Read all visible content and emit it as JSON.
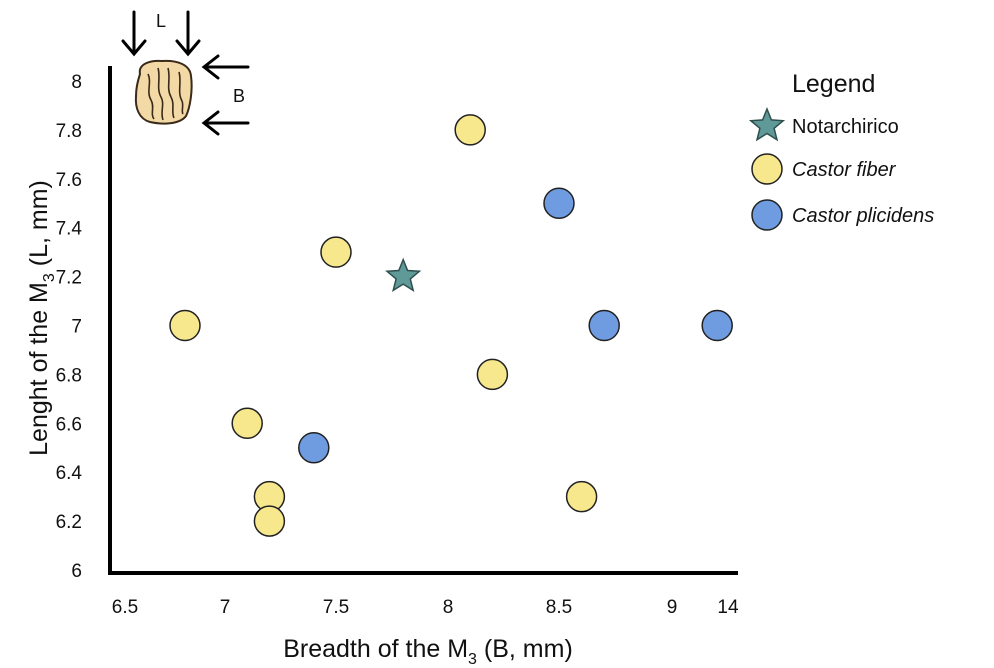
{
  "chart_data": {
    "type": "scatter",
    "xlabel": "Breadth of the M",
    "xlabel_sub": "3",
    "xlabel_tail": " (B, mm)",
    "ylabel": "Lenght of the  M",
    "ylabel_sub": "3",
    "ylabel_tail": " (L, mm)",
    "x_ticks": [
      "6.5",
      "7",
      "7.5",
      "8",
      "8.5",
      "9",
      "14"
    ],
    "y_ticks": [
      "6",
      "6.2",
      "6.4",
      "6.6",
      "6.8",
      "7",
      "7.2",
      "7.4",
      "7.6",
      "7.8",
      "8"
    ],
    "ylim": [
      6,
      8
    ],
    "grid": false,
    "legend_position": "top-right",
    "legend_title": "Legend",
    "series": [
      {
        "name": "Notarchirico",
        "marker": "star",
        "color": "#5f9a98",
        "points": [
          {
            "x": 7.8,
            "y": 7.2
          }
        ]
      },
      {
        "name": "Castor fiber",
        "marker": "circle",
        "color": "#f7e88e",
        "points": [
          {
            "x": 6.8,
            "y": 7.0
          },
          {
            "x": 7.1,
            "y": 6.6
          },
          {
            "x": 7.2,
            "y": 6.3
          },
          {
            "x": 7.2,
            "y": 6.2
          },
          {
            "x": 7.5,
            "y": 7.3
          },
          {
            "x": 8.1,
            "y": 7.8
          },
          {
            "x": 8.2,
            "y": 6.8
          },
          {
            "x": 8.6,
            "y": 6.3
          }
        ]
      },
      {
        "name": "Castor plicidens",
        "marker": "circle",
        "color": "#6f9be0",
        "points": [
          {
            "x": 7.4,
            "y": 6.5
          },
          {
            "x": 8.5,
            "y": 7.5
          },
          {
            "x": 8.7,
            "y": 7.0
          },
          {
            "x": 9.2,
            "y": 7.0
          }
        ]
      }
    ],
    "inset": {
      "length_label": "L",
      "breadth_label": "B"
    }
  }
}
